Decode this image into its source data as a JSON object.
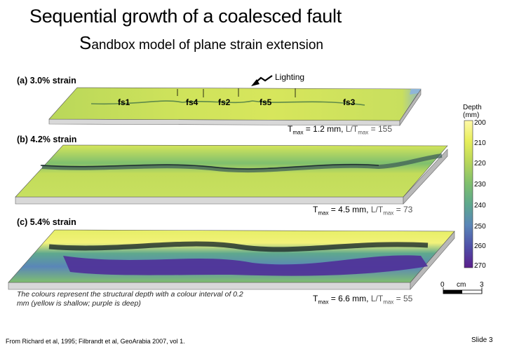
{
  "title": "Sequential growth of a coalesced fault",
  "subtitle_initial": "S",
  "subtitle_rest": "andbox model of plane strain extension",
  "lighting_label": "Lighting",
  "panels": [
    {
      "label": "(a) 3.0% strain",
      "tmax_text": "T",
      "tmax_sub": "max",
      "tmax_value": " = 1.2 mm,",
      "ratio_prefix": "L/T",
      "ratio_sub": "max",
      "ratio_value": " = 155"
    },
    {
      "label": "(b) 4.2% strain",
      "tmax_text": "T",
      "tmax_sub": "max",
      "tmax_value": " = 4.5 mm,",
      "ratio_prefix": "L/T",
      "ratio_sub": "max",
      "ratio_value": " = 73"
    },
    {
      "label": "(c) 5.4% strain",
      "tmax_text": "T",
      "tmax_sub": "max",
      "tmax_value": " = 6.6 mm,",
      "ratio_prefix": "L/T",
      "ratio_sub": "max",
      "ratio_value": " = 55"
    }
  ],
  "fault_segments": [
    "fs1",
    "fs4",
    "fs2",
    "fs5",
    "fs3"
  ],
  "colorbar": {
    "title_line1": "Depth",
    "title_line2": "(mm)",
    "ticks": [
      "200",
      "210",
      "220",
      "230",
      "240",
      "250",
      "260",
      "270"
    ],
    "colors": [
      "#fff9a8",
      "#e7ee5a",
      "#b9d75a",
      "#7fbf6e",
      "#5ea88e",
      "#5a86b8",
      "#4f4fa8",
      "#5b1f8c"
    ]
  },
  "scale_bar": {
    "start": "0",
    "unit": "cm",
    "end": "3"
  },
  "caption": "The colours represent the structural depth with a colour interval of 0.2 mm (yellow is shallow; purple is deep)",
  "footer_source": "From Richard et al, 1995; Filbrandt et al, GeoArabia 2007, vol 1.",
  "slide_number": "Slide 3"
}
